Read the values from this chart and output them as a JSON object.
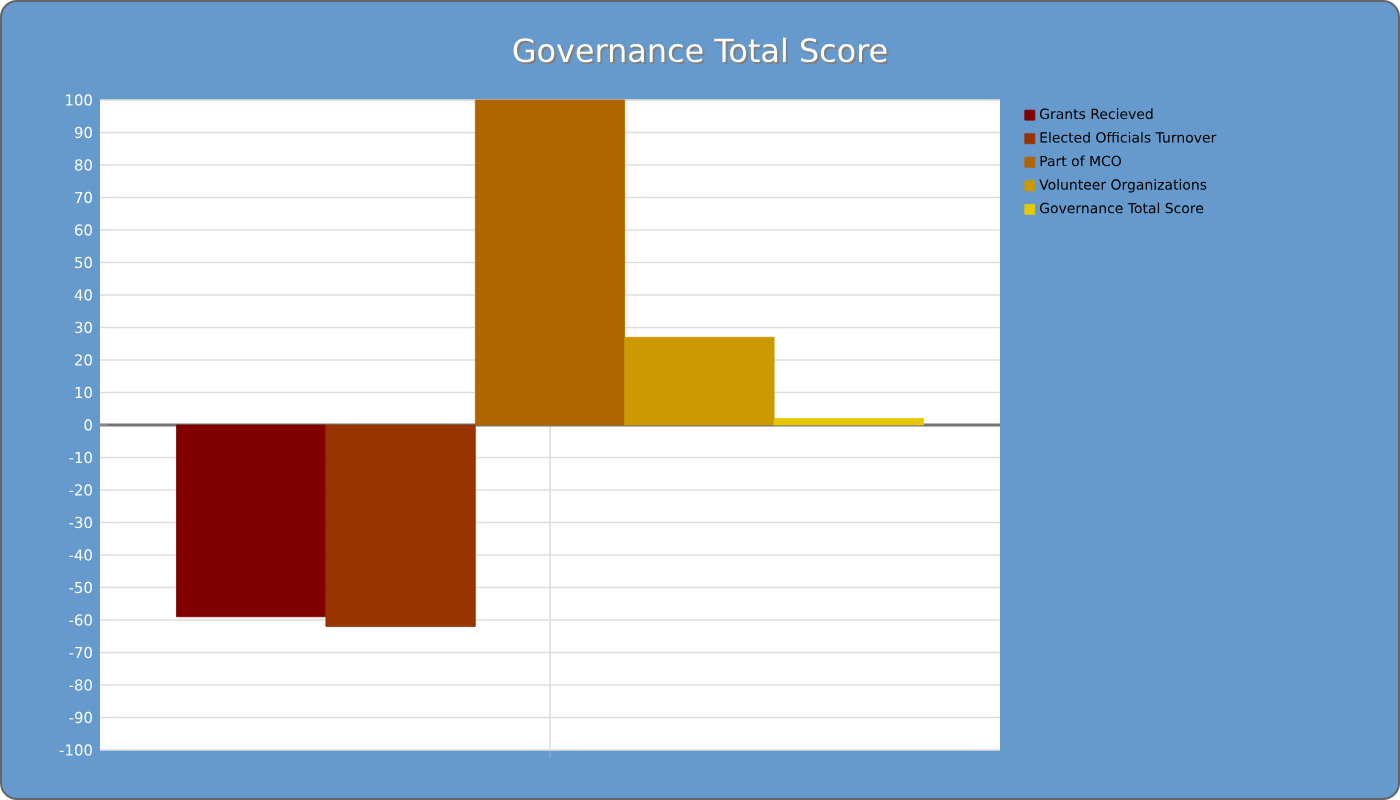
{
  "chart_data": {
    "type": "bar",
    "title": "Governance Total Score",
    "categories": [
      null
    ],
    "series": [
      {
        "name": "Grants Recieved",
        "color": "#800000",
        "values": [
          -59
        ]
      },
      {
        "name": "Elected Officials Turnover",
        "color": "#993300",
        "values": [
          -62
        ]
      },
      {
        "name": "Part of MCO",
        "color": "#b06600",
        "values": [
          100
        ]
      },
      {
        "name": "Volunteer Organizations",
        "color": "#cc9900",
        "values": [
          27
        ]
      },
      {
        "name": "Governance Total Score",
        "color": "#e6c800",
        "values": [
          2
        ]
      }
    ],
    "ylim": [
      -100,
      100
    ],
    "yticks": [
      -100,
      -90,
      -80,
      -70,
      -60,
      -50,
      -40,
      -30,
      -20,
      -10,
      0,
      10,
      20,
      30,
      40,
      50,
      60,
      70,
      80,
      90,
      100
    ],
    "grid": true,
    "legend": "top right"
  }
}
